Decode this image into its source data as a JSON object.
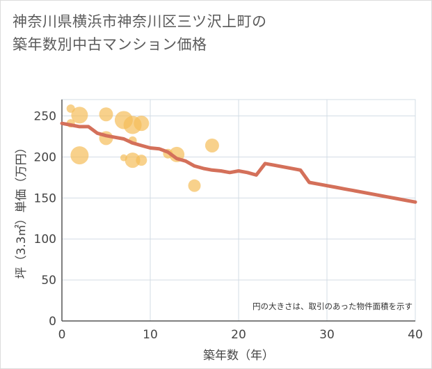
{
  "page": {
    "title_line1": "神奈川県横浜市神奈川区三ツ沢上町の",
    "title_line2": "築年数別中古マンション価格"
  },
  "chart_data": {
    "type": "scatter",
    "xlabel": "築年数（年）",
    "ylabel": "坪（3.3㎡）単価（万円）",
    "xlim": [
      0,
      40
    ],
    "ylim": [
      0,
      270
    ],
    "x_ticks": [
      0,
      10,
      20,
      30,
      40
    ],
    "y_ticks": [
      0,
      50,
      100,
      150,
      200,
      250
    ],
    "grid": true,
    "annotation": "円の大きさは、取引のあった物件面積を示す",
    "colors": {
      "bubble": "#f5be5a",
      "trend": "#d4705a",
      "grid": "#d3dce5",
      "axis_text": "#444444"
    },
    "bubbles": [
      {
        "x": 1,
        "y": 259,
        "r": 6
      },
      {
        "x": 1,
        "y": 241,
        "r": 6
      },
      {
        "x": 2,
        "y": 251,
        "r": 12
      },
      {
        "x": 2,
        "y": 202,
        "r": 13
      },
      {
        "x": 5,
        "y": 252,
        "r": 10
      },
      {
        "x": 5,
        "y": 223,
        "r": 10
      },
      {
        "x": 7,
        "y": 245,
        "r": 13
      },
      {
        "x": 7,
        "y": 199,
        "r": 5
      },
      {
        "x": 8,
        "y": 239,
        "r": 13
      },
      {
        "x": 8,
        "y": 220,
        "r": 6
      },
      {
        "x": 8,
        "y": 196,
        "r": 11
      },
      {
        "x": 9,
        "y": 241,
        "r": 11
      },
      {
        "x": 9,
        "y": 196,
        "r": 8
      },
      {
        "x": 12,
        "y": 204,
        "r": 7
      },
      {
        "x": 13,
        "y": 203,
        "r": 11
      },
      {
        "x": 15,
        "y": 165,
        "r": 9
      },
      {
        "x": 17,
        "y": 214,
        "r": 10
      }
    ],
    "series": [
      {
        "x": [
          0,
          1,
          2,
          3,
          4,
          5,
          6,
          7,
          8,
          9,
          10,
          11,
          12,
          13,
          14,
          15,
          16,
          17,
          18,
          19,
          20,
          21,
          22,
          23,
          24,
          25,
          26,
          27,
          28,
          29,
          30,
          31,
          32,
          33,
          34,
          35,
          36,
          37,
          38,
          39,
          40
        ],
        "values": [
          241,
          239,
          237,
          237,
          229,
          226,
          224,
          222,
          217,
          214,
          211,
          210,
          206,
          198,
          195,
          189,
          186,
          184,
          183,
          181,
          183,
          181,
          178,
          192,
          190,
          188,
          186,
          184,
          169,
          167,
          165,
          163,
          161,
          159,
          157,
          155,
          153,
          151,
          149,
          147,
          145
        ]
      }
    ]
  }
}
